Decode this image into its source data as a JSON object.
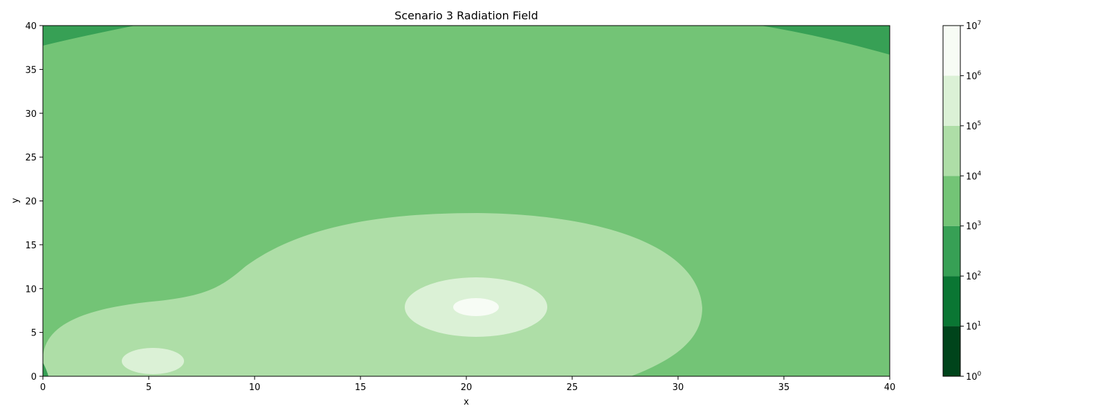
{
  "chart_data": {
    "type": "heatmap",
    "title": "Scenario 3 Radiation Field",
    "xlabel": "x",
    "ylabel": "y",
    "xlim": [
      0,
      40
    ],
    "ylim": [
      0,
      40
    ],
    "x_ticks": [
      "0",
      "5",
      "10",
      "15",
      "20",
      "25",
      "30",
      "35",
      "40"
    ],
    "y_ticks": [
      "0",
      "5",
      "10",
      "15",
      "20",
      "25",
      "30",
      "35",
      "40"
    ],
    "colorbar": {
      "scale": "log",
      "range": [
        1,
        10000000
      ],
      "levels": [
        1,
        10,
        100,
        1000,
        10000,
        100000,
        1000000,
        10000000
      ],
      "tick_labels": [
        {
          "base": "10",
          "exp": "0"
        },
        {
          "base": "10",
          "exp": "1"
        },
        {
          "base": "10",
          "exp": "2"
        },
        {
          "base": "10",
          "exp": "3"
        },
        {
          "base": "10",
          "exp": "4"
        },
        {
          "base": "10",
          "exp": "5"
        },
        {
          "base": "10",
          "exp": "6"
        },
        {
          "base": "10",
          "exp": "7"
        }
      ],
      "band_colors": [
        "#00441b",
        "#0a7633",
        "#37a055",
        "#73c476",
        "#aedea7",
        "#dbf1d6",
        "#f7fcf5"
      ]
    },
    "sources": [
      {
        "x": 20.5,
        "y": 7.9
      },
      {
        "x": 5.2,
        "y": 1.8
      }
    ],
    "regions": [
      {
        "level_band": "1e2-1e3",
        "description": "top-left corner"
      },
      {
        "level_band": "1e2-1e3",
        "description": "top-right corner"
      },
      {
        "level_band": "1e3-1e4",
        "description": "background"
      },
      {
        "level_band": "1e4-1e5",
        "description": "elongated lobe around both sources"
      },
      {
        "level_band": "1e5-1e6",
        "description": "around source at (20.5, 7.9)"
      },
      {
        "level_band": "1e5-1e6",
        "description": "around source at (5.2, 1.8)"
      },
      {
        "level_band": "1e6-1e7",
        "description": "core of source at (20.5, 7.9)"
      }
    ]
  }
}
